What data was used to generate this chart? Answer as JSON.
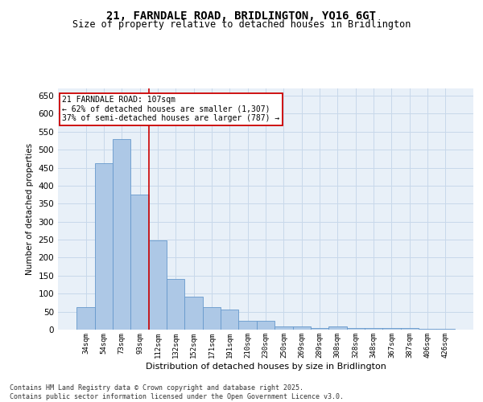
{
  "title1": "21, FARNDALE ROAD, BRIDLINGTON, YO16 6GT",
  "title2": "Size of property relative to detached houses in Bridlington",
  "xlabel": "Distribution of detached houses by size in Bridlington",
  "ylabel": "Number of detached properties",
  "categories": [
    "34sqm",
    "54sqm",
    "73sqm",
    "93sqm",
    "112sqm",
    "132sqm",
    "152sqm",
    "171sqm",
    "191sqm",
    "210sqm",
    "230sqm",
    "250sqm",
    "269sqm",
    "289sqm",
    "308sqm",
    "328sqm",
    "348sqm",
    "367sqm",
    "387sqm",
    "406sqm",
    "426sqm"
  ],
  "values": [
    62,
    462,
    530,
    375,
    248,
    140,
    92,
    62,
    55,
    25,
    25,
    10,
    10,
    5,
    8,
    5,
    5,
    4,
    5,
    3,
    3
  ],
  "bar_color": "#adc8e6",
  "bar_edge_color": "#6699cc",
  "grid_color": "#c8d8ea",
  "background_color": "#e8f0f8",
  "vline_color": "#cc0000",
  "vline_pos": 3.5,
  "annotation_title": "21 FARNDALE ROAD: 107sqm",
  "annotation_line1": "← 62% of detached houses are smaller (1,307)",
  "annotation_line2": "37% of semi-detached houses are larger (787) →",
  "annotation_box_edge_color": "#cc0000",
  "footnote1": "Contains HM Land Registry data © Crown copyright and database right 2025.",
  "footnote2": "Contains public sector information licensed under the Open Government Licence v3.0.",
  "ylim": [
    0,
    670
  ],
  "yticks": [
    0,
    50,
    100,
    150,
    200,
    250,
    300,
    350,
    400,
    450,
    500,
    550,
    600,
    650
  ]
}
